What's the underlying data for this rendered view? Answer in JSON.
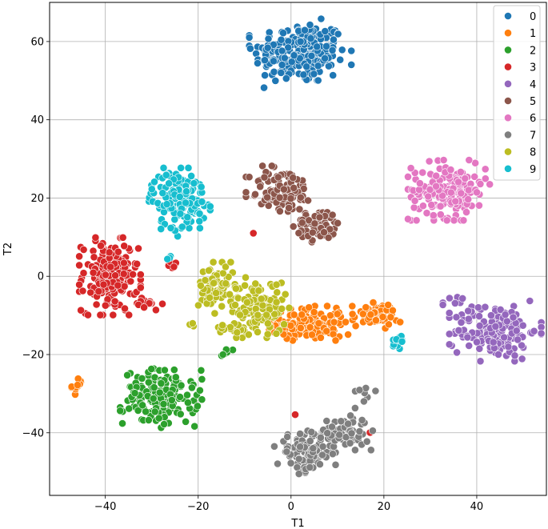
{
  "chart_data": {
    "type": "scatter",
    "title": "",
    "xlabel": "T1",
    "ylabel": "T2",
    "xlim": [
      -52,
      55
    ],
    "ylim": [
      -56,
      70
    ],
    "x_ticks": [
      -40,
      -20,
      0,
      20,
      40
    ],
    "y_ticks": [
      -40,
      -20,
      0,
      20,
      40,
      60
    ],
    "x_tick_labels": [
      "−40",
      "−20",
      "0",
      "20",
      "40"
    ],
    "y_tick_labels": [
      "−40",
      "−20",
      "0",
      "20",
      "40",
      "60"
    ],
    "grid": true,
    "legend_position": "top-right",
    "series": [
      {
        "name": "0",
        "color": "#1f77b4",
        "clusters": [
          {
            "cx": 2,
            "cy": 57,
            "sx": 5,
            "sy": 4,
            "n": 230
          }
        ]
      },
      {
        "name": "1",
        "color": "#ff7f0e",
        "clusters": [
          {
            "cx": 3,
            "cy": -12,
            "sx": 3.5,
            "sy": 2,
            "n": 130
          },
          {
            "cx": 18,
            "cy": -10,
            "sx": 2.5,
            "sy": 1.5,
            "n": 60
          },
          {
            "cx": -46,
            "cy": -28,
            "sx": 0.6,
            "sy": 1,
            "n": 12
          },
          {
            "cx": 11,
            "cy": -12,
            "sx": 1.5,
            "sy": 2,
            "n": 10
          }
        ]
      },
      {
        "name": "2",
        "color": "#2ca02c",
        "clusters": [
          {
            "cx": -28,
            "cy": -31,
            "sx": 4,
            "sy": 3.5,
            "n": 160
          },
          {
            "cx": -14,
            "cy": -19.5,
            "sx": 1,
            "sy": 0.5,
            "n": 6
          }
        ]
      },
      {
        "name": "3",
        "color": "#d62728",
        "clusters": [
          {
            "cx": -39,
            "cy": 0,
            "sx": 3,
            "sy": 4.5,
            "n": 190
          },
          {
            "cx": -31,
            "cy": -7,
            "sx": 1.5,
            "sy": 1,
            "n": 12
          },
          {
            "cx": -25.5,
            "cy": 3,
            "sx": 0.4,
            "sy": 0.6,
            "n": 6
          },
          {
            "cx": -8,
            "cy": 11,
            "sx": 0.2,
            "sy": 0.2,
            "n": 1
          },
          {
            "cx": 1,
            "cy": -35.5,
            "sx": 0.2,
            "sy": 0.2,
            "n": 1
          },
          {
            "cx": 17,
            "cy": -40,
            "sx": 0.2,
            "sy": 0.2,
            "n": 1
          }
        ]
      },
      {
        "name": "4",
        "color": "#9467bd",
        "clusters": [
          {
            "cx": 44,
            "cy": -14,
            "sx": 4.5,
            "sy": 3.5,
            "n": 160
          },
          {
            "cx": 36,
            "cy": -7,
            "sx": 1.5,
            "sy": 1,
            "n": 10
          }
        ]
      },
      {
        "name": "5",
        "color": "#8c564b",
        "clusters": [
          {
            "cx": -2,
            "cy": 22,
            "sx": 3.5,
            "sy": 3,
            "n": 100
          },
          {
            "cx": 6,
            "cy": 13,
            "sx": 2.5,
            "sy": 2,
            "n": 60
          }
        ]
      },
      {
        "name": "6",
        "color": "#e377c2",
        "clusters": [
          {
            "cx": 34,
            "cy": 22,
            "sx": 4,
            "sy": 3.5,
            "n": 170
          }
        ]
      },
      {
        "name": "7",
        "color": "#7f7f7f",
        "clusters": [
          {
            "cx": 3,
            "cy": -45,
            "sx": 3,
            "sy": 2.5,
            "n": 100
          },
          {
            "cx": 11,
            "cy": -40,
            "sx": 3,
            "sy": 2,
            "n": 80
          },
          {
            "cx": 16,
            "cy": -30,
            "sx": 1,
            "sy": 2,
            "n": 8
          }
        ]
      },
      {
        "name": "8",
        "color": "#bcbd22",
        "clusters": [
          {
            "cx": -16,
            "cy": -3,
            "sx": 2,
            "sy": 3,
            "n": 70
          },
          {
            "cx": -7,
            "cy": -8,
            "sx": 3,
            "sy": 3.5,
            "n": 110
          },
          {
            "cx": -14,
            "cy": -13,
            "sx": 1.5,
            "sy": 1,
            "n": 12
          },
          {
            "cx": -21,
            "cy": -12,
            "sx": 0.5,
            "sy": 0.5,
            "n": 3
          }
        ]
      },
      {
        "name": "9",
        "color": "#17becf",
        "clusters": [
          {
            "cx": -24,
            "cy": 20,
            "sx": 3,
            "sy": 3.5,
            "n": 150
          },
          {
            "cx": 23,
            "cy": -17,
            "sx": 0.8,
            "sy": 1.3,
            "n": 14
          },
          {
            "cx": -27,
            "cy": 12,
            "sx": 2,
            "sy": 0.8,
            "n": 8
          },
          {
            "cx": -26,
            "cy": 4,
            "sx": 0.3,
            "sy": 0.8,
            "n": 3
          }
        ]
      }
    ]
  }
}
